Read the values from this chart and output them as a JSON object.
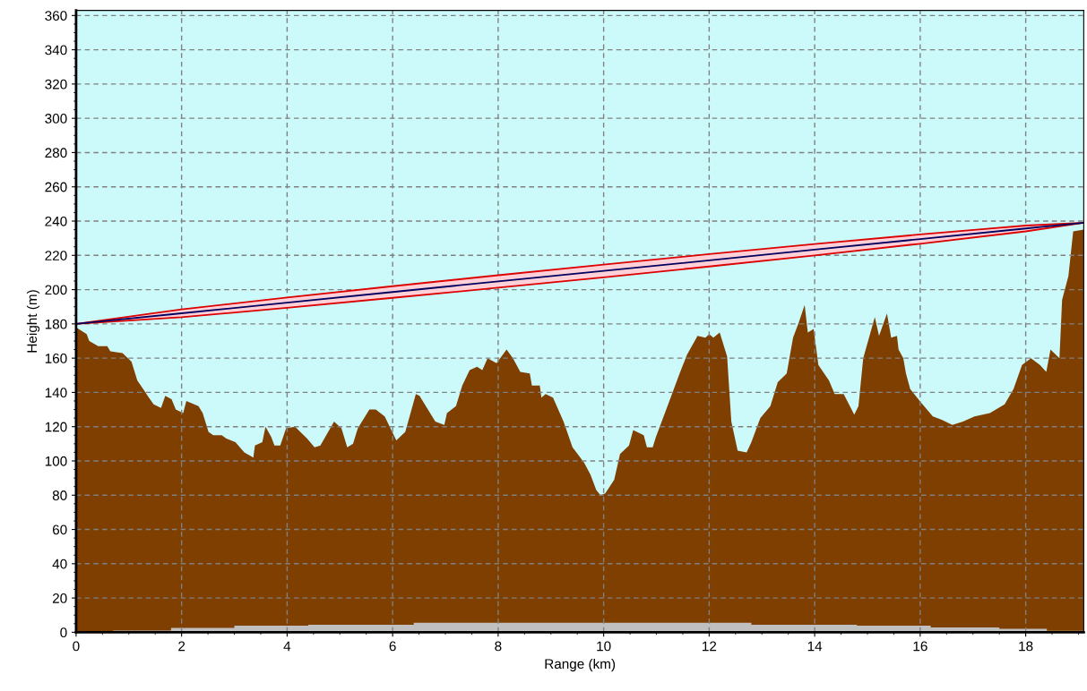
{
  "chart_data": {
    "type": "area",
    "xlabel": "Range (km)",
    "ylabel": "Height (m)",
    "xlim": [
      0,
      19.1
    ],
    "ylim": [
      0,
      363
    ],
    "xticks": [
      0,
      2,
      4,
      6,
      8,
      10,
      12,
      14,
      16,
      18
    ],
    "yticks": [
      0,
      20,
      40,
      60,
      80,
      100,
      120,
      140,
      160,
      180,
      200,
      220,
      240,
      260,
      280,
      300,
      320,
      340,
      360
    ],
    "grid": true,
    "legend": false,
    "series": [
      {
        "color": "#7f3f00",
        "x": [
          0,
          0.2,
          0.25,
          0.42,
          0.59,
          0.65,
          0.88,
          1.05,
          1.16,
          1.27,
          1.38,
          1.47,
          1.61,
          1.69,
          1.81,
          1.89,
          2.03,
          2.09,
          2.32,
          2.4,
          2.51,
          2.6,
          2.76,
          2.85,
          3.02,
          3.19,
          3.36,
          3.39,
          3.53,
          3.59,
          3.7,
          3.76,
          3.87,
          3.98,
          4.15,
          4.38,
          4.52,
          4.63,
          4.89,
          5.03,
          5.14,
          5.25,
          5.34,
          5.56,
          5.68,
          5.85,
          6.07,
          6.24,
          6.44,
          6.51,
          6.81,
          6.98,
          7.03,
          7.2,
          7.32,
          7.46,
          7.6,
          7.7,
          7.8,
          7.97,
          8.16,
          8.28,
          8.42,
          8.6,
          8.64,
          8.79,
          8.82,
          8.9,
          9.04,
          9.24,
          9.41,
          9.63,
          9.75,
          9.86,
          9.94,
          10.03,
          10.2,
          10.31,
          10.48,
          10.56,
          10.76,
          10.82,
          10.93,
          10.99,
          11.21,
          11.44,
          11.58,
          11.78,
          11.93,
          12.0,
          12.08,
          12.2,
          12.34,
          12.42,
          12.54,
          12.71,
          12.8,
          12.97,
          13.16,
          13.3,
          13.47,
          13.59,
          13.7,
          13.81,
          13.87,
          13.98,
          14.07,
          14.27,
          14.38,
          14.55,
          14.75,
          14.83,
          14.92,
          15.03,
          15.14,
          15.22,
          15.37,
          15.45,
          15.56,
          15.59,
          15.68,
          15.73,
          15.81,
          16.02,
          16.24,
          16.41,
          16.61,
          16.81,
          17.03,
          17.32,
          17.6,
          17.77,
          17.93,
          18.1,
          18.27,
          18.39,
          18.47,
          18.64,
          18.69,
          18.81,
          18.9,
          19.1
        ],
        "values": [
          178,
          174,
          170,
          167,
          167,
          164,
          163,
          158,
          147,
          142,
          137,
          133,
          131,
          138,
          136,
          130,
          128,
          135,
          132,
          128,
          117,
          115,
          115,
          113,
          111,
          105,
          102,
          109,
          111,
          120,
          114,
          109,
          109,
          119,
          120,
          113,
          108,
          109,
          123,
          119,
          108,
          110,
          119,
          130,
          130,
          126,
          112,
          117,
          139,
          138,
          123,
          121,
          128,
          132,
          144,
          153,
          155,
          153,
          160,
          157,
          165,
          160,
          152,
          151,
          144,
          144,
          137,
          139,
          137,
          123,
          108,
          99,
          92,
          83,
          80,
          81,
          89,
          104,
          109,
          118,
          115,
          108,
          108,
          114,
          132,
          151,
          162,
          173,
          172,
          174,
          172,
          175,
          161,
          123,
          106,
          105,
          111,
          125,
          132,
          146,
          151,
          172,
          181,
          191,
          175,
          177,
          156,
          147,
          139,
          139,
          127,
          132,
          160,
          172,
          184,
          173,
          186,
          172,
          173,
          165,
          160,
          151,
          142,
          134,
          126,
          124,
          121,
          123,
          126,
          128,
          133,
          142,
          156,
          160,
          156,
          152,
          165,
          160,
          194,
          208,
          234,
          235
        ]
      },
      {
        "type": "area",
        "color": "#c0c0c0",
        "x": [
          0,
          0.7,
          0.7,
          1.8,
          1.8,
          3.0,
          3.0,
          4.4,
          4.4,
          6.4,
          6.4,
          12.8,
          12.8,
          14.8,
          14.8,
          16.2,
          16.2,
          17.5,
          17.5,
          18.4,
          18.4,
          19.1
        ],
        "values": [
          0.3,
          0.3,
          1.0,
          1.0,
          2.5,
          2.5,
          3.8,
          3.8,
          4.4,
          4.4,
          5.5,
          5.5,
          4.4,
          4.4,
          3.8,
          3.8,
          2.8,
          2.8,
          2.0,
          2.0,
          0.8,
          0.8
        ]
      },
      {
        "type": "line",
        "color": "#000060",
        "x": [
          0,
          2,
          4,
          6,
          8,
          10,
          12,
          14,
          16,
          18,
          19.1
        ],
        "values": [
          180,
          186.2,
          192.4,
          198.6,
          204.8,
          210.9,
          217.1,
          223.3,
          229.5,
          235.7,
          239
        ],
        "upper": [
          180,
          188.5,
          195.4,
          202.0,
          208.4,
          214.6,
          220.7,
          226.6,
          232.2,
          237.4,
          239
        ],
        "lower": [
          180,
          183.9,
          189.4,
          195.2,
          201.1,
          207.2,
          213.5,
          220.0,
          226.8,
          234.0,
          239
        ]
      }
    ]
  }
}
